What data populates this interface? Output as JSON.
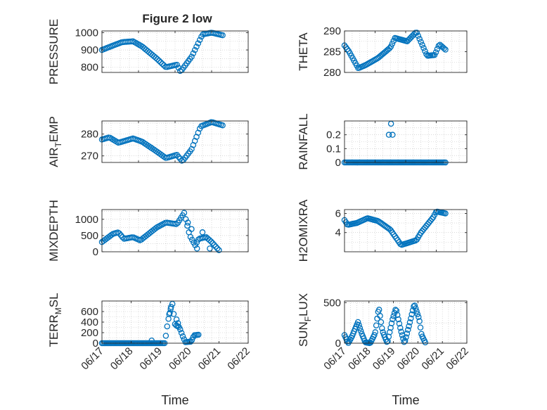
{
  "figure": {
    "title": "Figure 2 low"
  },
  "colors": {
    "marker": "#0072BD",
    "axis": "#262626",
    "grid": "#262626"
  },
  "chart_data": [
    {
      "type": "scatter",
      "ylabel": "PRESSURE",
      "ylim": [
        770,
        1010
      ],
      "yticks": [
        "800",
        "900",
        "1000"
      ],
      "ytick_values": [
        800,
        900,
        1000
      ],
      "xlim": [
        "06/17",
        "06/21"
      ],
      "keypoints": [
        [
          0,
          900
        ],
        [
          0.3,
          925
        ],
        [
          0.55,
          945
        ],
        [
          0.85,
          950
        ],
        [
          1.1,
          920
        ],
        [
          1.5,
          850
        ],
        [
          1.75,
          800
        ],
        [
          2.05,
          815
        ],
        [
          2.15,
          775
        ],
        [
          2.45,
          860
        ],
        [
          2.75,
          990
        ],
        [
          3.0,
          1000
        ],
        [
          3.3,
          985
        ]
      ],
      "n_points": 75,
      "grid": true,
      "marker": "open-circle"
    },
    {
      "type": "scatter",
      "ylabel": "THETA",
      "ylim": [
        280,
        290
      ],
      "yticks": [
        "280",
        "285",
        "290"
      ],
      "ytick_values": [
        280,
        285,
        290
      ],
      "xlim": [
        "06/17",
        "06/21"
      ],
      "keypoints": [
        [
          0,
          286.5
        ],
        [
          0.15,
          285
        ],
        [
          0.45,
          281
        ],
        [
          0.7,
          281.8
        ],
        [
          1.1,
          283.5
        ],
        [
          1.5,
          286
        ],
        [
          1.65,
          288.3
        ],
        [
          2.05,
          287.5
        ],
        [
          2.35,
          289.8
        ],
        [
          2.7,
          284
        ],
        [
          2.95,
          284.2
        ],
        [
          3.1,
          286.8
        ],
        [
          3.3,
          285.5
        ]
      ],
      "n_points": 75,
      "grid": true,
      "marker": "open-circle"
    },
    {
      "type": "scatter",
      "ylabel": "AIR_TEMP",
      "ylim": [
        267,
        286
      ],
      "yticks": [
        "270",
        "280"
      ],
      "ytick_values": [
        270,
        280
      ],
      "xlim": [
        "06/17",
        "06/21"
      ],
      "keypoints": [
        [
          0,
          277.5
        ],
        [
          0.2,
          278.5
        ],
        [
          0.45,
          276
        ],
        [
          0.85,
          278
        ],
        [
          1.1,
          276.5
        ],
        [
          1.5,
          272
        ],
        [
          1.75,
          269
        ],
        [
          2.05,
          270.5
        ],
        [
          2.2,
          267.5
        ],
        [
          2.45,
          273
        ],
        [
          2.7,
          283.5
        ],
        [
          3.0,
          285.5
        ],
        [
          3.3,
          284
        ]
      ],
      "n_points": 75,
      "grid": true,
      "marker": "open-circle"
    },
    {
      "type": "scatter",
      "ylabel": "RAINFALL",
      "ylim": [
        0,
        0.3
      ],
      "yticks": [
        "0",
        "0.1",
        "0.2"
      ],
      "ytick_values": [
        0,
        0.1,
        0.2
      ],
      "xlim": [
        "06/17",
        "06/21"
      ],
      "keypoints": [
        [
          0,
          0
        ],
        [
          3.3,
          0
        ]
      ],
      "n_points": 75,
      "extra_points": [
        [
          1.45,
          0.2
        ],
        [
          1.52,
          0.28
        ],
        [
          1.57,
          0.2
        ]
      ],
      "grid": true,
      "marker": "open-circle"
    },
    {
      "type": "scatter",
      "ylabel": "MIXDEPTH",
      "ylim": [
        0,
        1300
      ],
      "yticks": [
        "0",
        "500",
        "1000"
      ],
      "ytick_values": [
        0,
        500,
        1000
      ],
      "xlim": [
        "06/17",
        "06/21"
      ],
      "keypoints": [
        [
          0,
          300
        ],
        [
          0.3,
          550
        ],
        [
          0.45,
          600
        ],
        [
          0.6,
          400
        ],
        [
          0.85,
          450
        ],
        [
          1.05,
          350
        ],
        [
          1.5,
          750
        ],
        [
          1.75,
          900
        ],
        [
          2.05,
          850
        ],
        [
          2.25,
          1200
        ],
        [
          2.4,
          500
        ],
        [
          2.55,
          200
        ],
        [
          2.65,
          400
        ],
        [
          2.85,
          450
        ],
        [
          3.0,
          300
        ],
        [
          3.2,
          50
        ]
      ],
      "n_points": 75,
      "extra_points": [
        [
          2.35,
          900
        ],
        [
          2.45,
          700
        ],
        [
          2.6,
          100
        ],
        [
          2.75,
          600
        ],
        [
          2.95,
          100
        ]
      ],
      "grid": true,
      "marker": "open-circle"
    },
    {
      "type": "scatter",
      "ylabel": "H2OMIXRA",
      "ylim": [
        2,
        6.4
      ],
      "yticks": [
        "4",
        "6"
      ],
      "ytick_values": [
        4,
        6
      ],
      "xlim": [
        "06/17",
        "06/21"
      ],
      "keypoints": [
        [
          0,
          5.3
        ],
        [
          0.1,
          4.8
        ],
        [
          0.4,
          5
        ],
        [
          0.75,
          5.5
        ],
        [
          1.1,
          5.2
        ],
        [
          1.5,
          4.3
        ],
        [
          1.85,
          2.7
        ],
        [
          2.05,
          2.9
        ],
        [
          2.35,
          3.2
        ],
        [
          2.5,
          4
        ],
        [
          2.9,
          5.6
        ],
        [
          3.0,
          6.2
        ],
        [
          3.3,
          6
        ]
      ],
      "n_points": 75,
      "grid": true,
      "marker": "open-circle"
    },
    {
      "type": "scatter",
      "ylabel": "TERR_MSL",
      "ylim": [
        0,
        800
      ],
      "yticks": [
        "0",
        "200",
        "400",
        "600"
      ],
      "ytick_values": [
        0,
        200,
        400,
        600
      ],
      "xlim": [
        "06/17",
        "06/21"
      ],
      "xticks": [
        "06/17",
        "06/18",
        "06/19",
        "06/20",
        "06/21",
        "06/22"
      ],
      "xlabel": "Time",
      "keypoints": [
        [
          0,
          0
        ],
        [
          2.0,
          0
        ],
        [
          2.15,
          0
        ],
        [
          2.25,
          400
        ],
        [
          2.4,
          780
        ],
        [
          2.5,
          350
        ],
        [
          2.65,
          300
        ],
        [
          2.75,
          150
        ],
        [
          2.85,
          20
        ],
        [
          3.05,
          30
        ],
        [
          3.15,
          150
        ],
        [
          3.3,
          160
        ]
      ],
      "n_points": 75,
      "extra_points": [
        [
          1.7,
          50
        ],
        [
          2.3,
          550
        ],
        [
          2.35,
          650
        ],
        [
          2.55,
          450
        ],
        [
          2.6,
          380
        ]
      ],
      "grid": true,
      "marker": "open-circle"
    },
    {
      "type": "scatter",
      "ylabel": "SUN_FLUX",
      "ylim": [
        0,
        520
      ],
      "yticks": [
        "0",
        "500"
      ],
      "ytick_values": [
        0,
        500
      ],
      "xlim": [
        "06/17",
        "06/21"
      ],
      "xticks": [
        "06/17",
        "06/18",
        "06/19",
        "06/20",
        "06/21",
        "06/22"
      ],
      "xlabel": "Time",
      "keypoints": [
        [
          0,
          100
        ],
        [
          0.15,
          0
        ],
        [
          0.3,
          80
        ],
        [
          0.55,
          260
        ],
        [
          0.7,
          120
        ],
        [
          0.85,
          10
        ],
        [
          1.05,
          0
        ],
        [
          1.25,
          120
        ],
        [
          1.4,
          440
        ],
        [
          1.55,
          150
        ],
        [
          1.75,
          0
        ],
        [
          1.95,
          280
        ],
        [
          2.1,
          430
        ],
        [
          2.3,
          160
        ],
        [
          2.45,
          0
        ],
        [
          2.65,
          230
        ],
        [
          2.85,
          480
        ],
        [
          3.05,
          300
        ],
        [
          3.15,
          100
        ],
        [
          3.3,
          10
        ]
      ],
      "n_points": 85,
      "grid": true,
      "marker": "open-circle"
    }
  ]
}
